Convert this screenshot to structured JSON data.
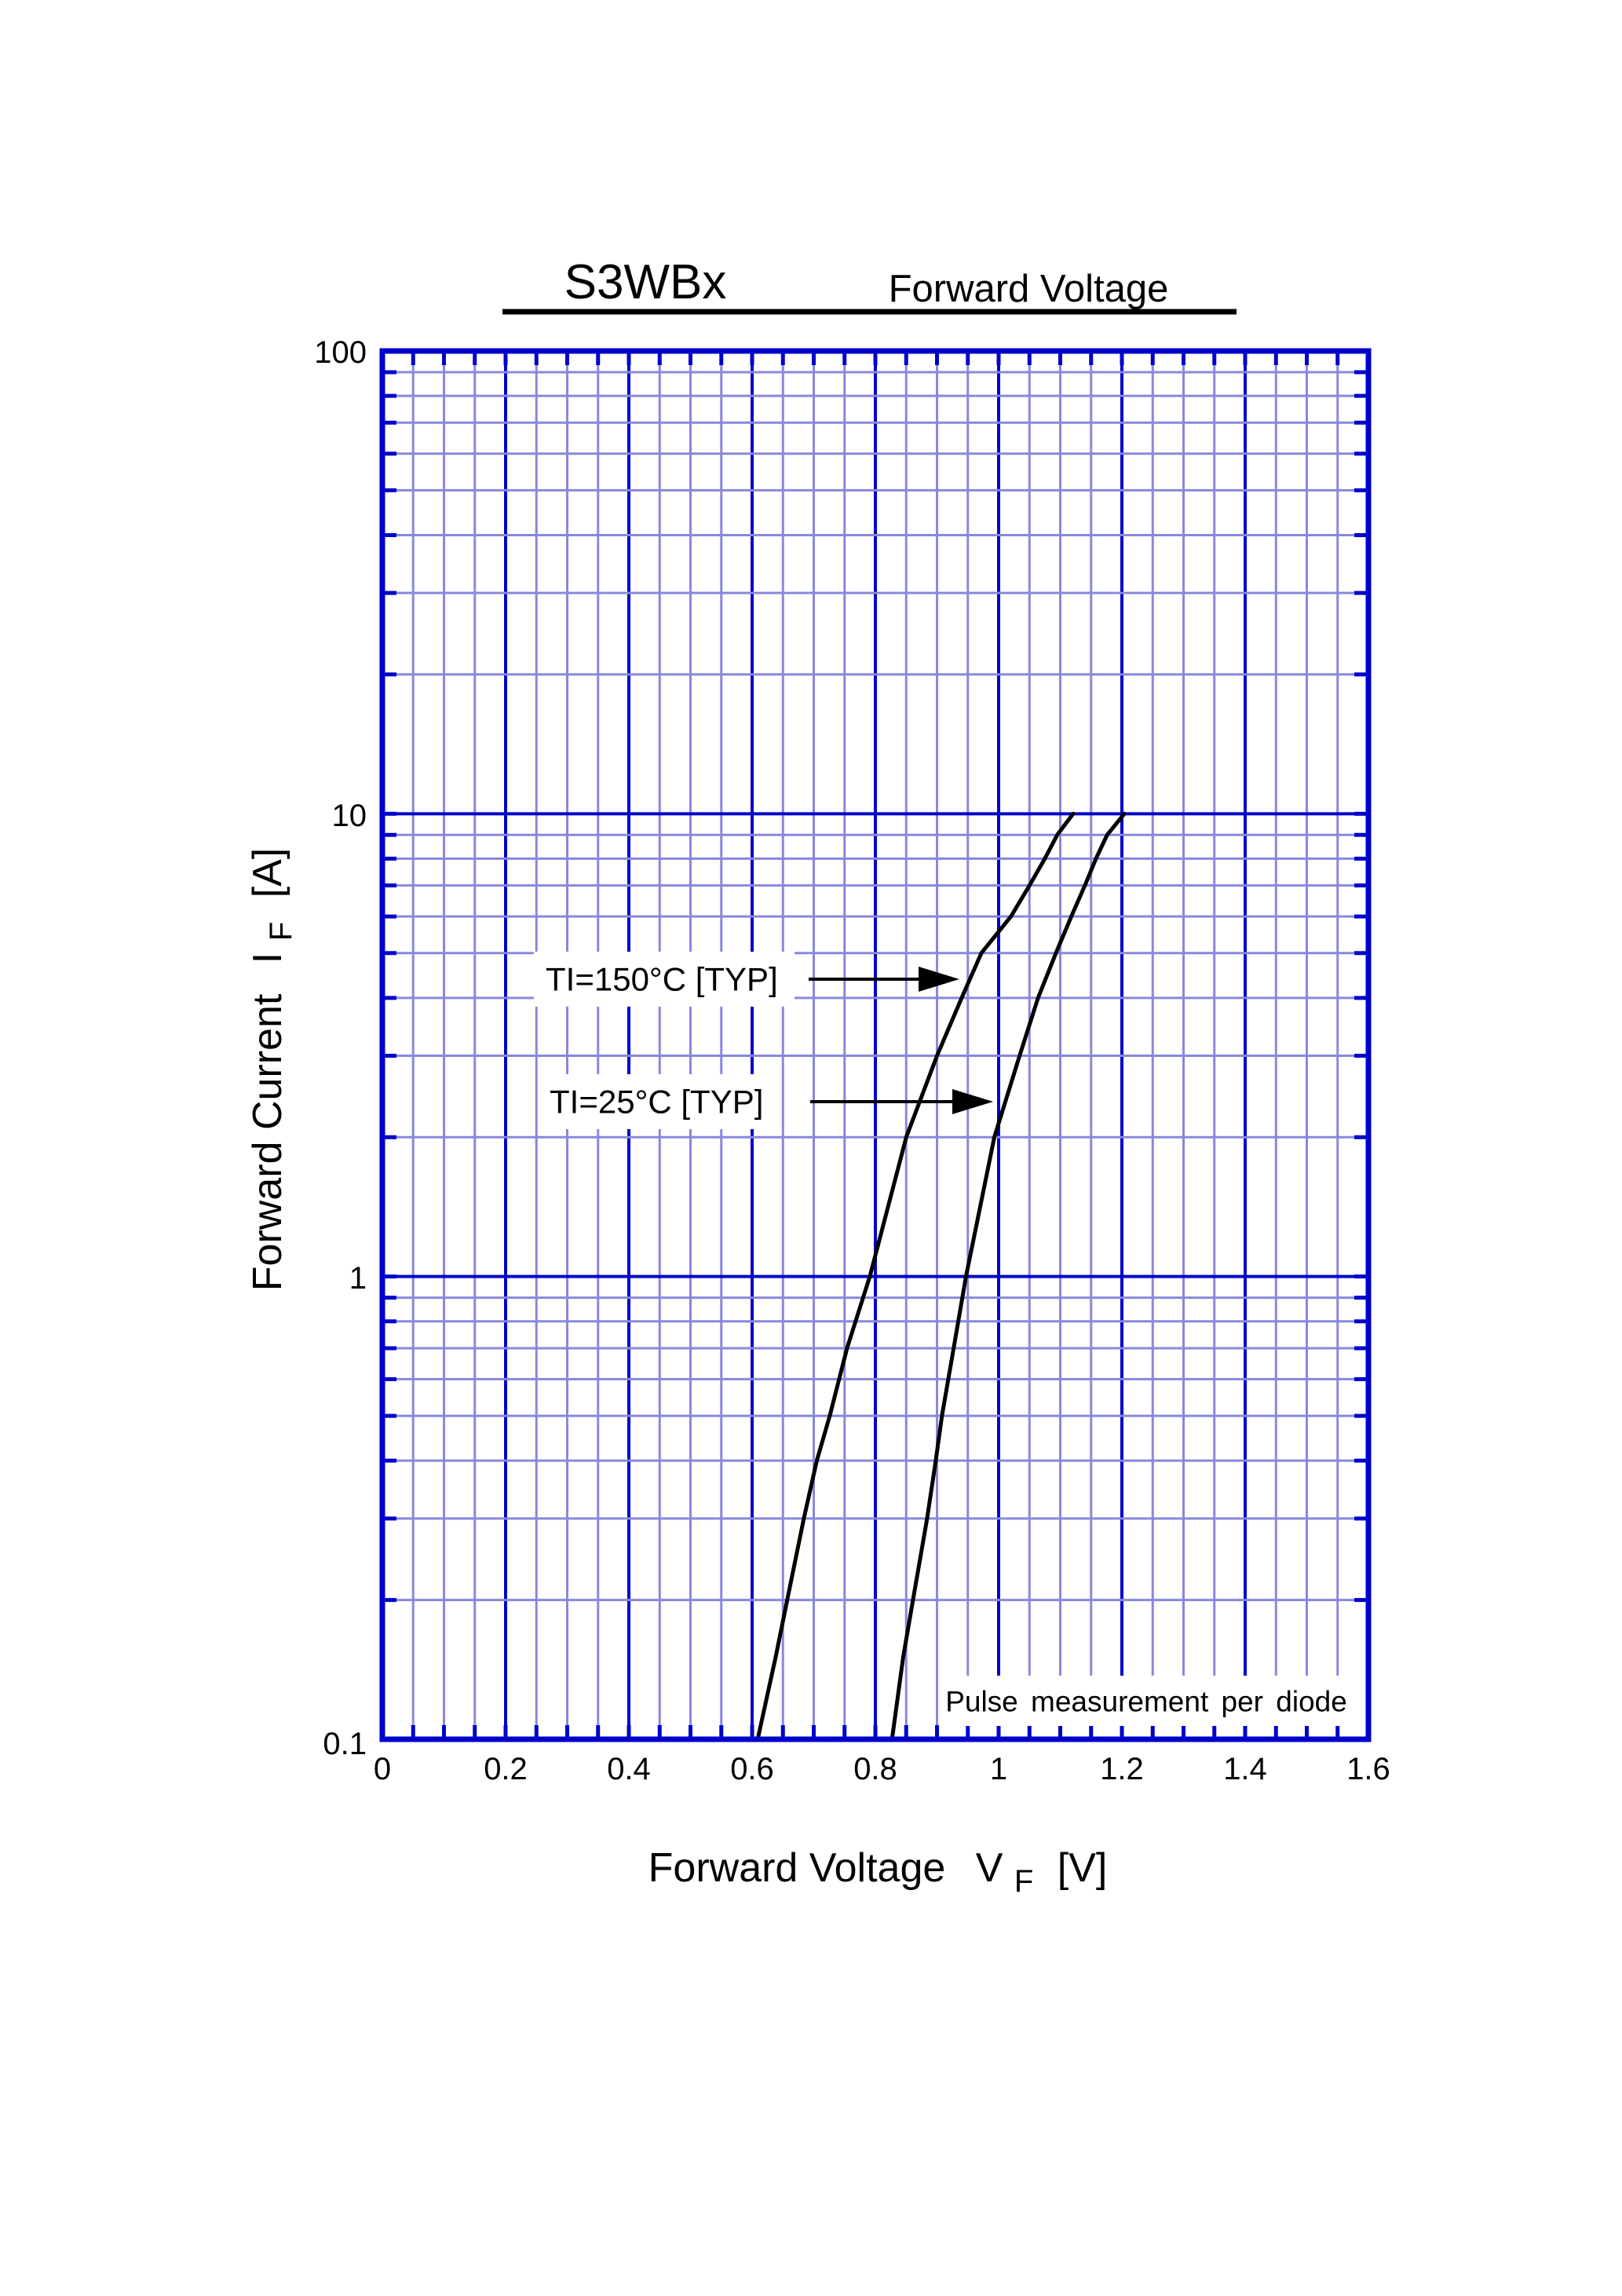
{
  "header": {
    "part_number": "S3WBx",
    "title": "Forward Voltage"
  },
  "chart_data": {
    "type": "line",
    "title": "S3WBx Forward Voltage",
    "xlabel": "Forward Voltage VF [V]",
    "ylabel": "Forward Current IF [A]",
    "grid": "on",
    "legend_position": "inline-labels-with-arrows",
    "x_axis": {
      "label_main": "Forward Voltage",
      "label_symbol": "V",
      "label_subscript": "F",
      "label_unit": "[V]",
      "scale": "linear",
      "min": 0,
      "max": 1.6,
      "major_step": 0.2,
      "minor_step": 0.05,
      "tick_labels": [
        "0",
        "0.2",
        "0.4",
        "0.6",
        "0.8",
        "1",
        "1.2",
        "1.4",
        "1.6"
      ]
    },
    "y_axis": {
      "label_main": "Forward Current",
      "label_symbol": "I",
      "label_subscript": "F",
      "label_unit": "[A]",
      "scale": "log",
      "min": 0.1,
      "max": 100,
      "tick_labels_top_to_bottom": [
        "100",
        "10",
        "1",
        "0.1"
      ]
    },
    "series": [
      {
        "name": "TI=150°C [TYP]",
        "temperature_c": 150,
        "points_v_i": [
          [
            0.609,
            0.1
          ],
          [
            0.638,
            0.15
          ],
          [
            0.657,
            0.2
          ],
          [
            0.684,
            0.3
          ],
          [
            0.705,
            0.4
          ],
          [
            0.726,
            0.5
          ],
          [
            0.754,
            0.7
          ],
          [
            0.791,
            1
          ],
          [
            0.85,
            2
          ],
          [
            0.9,
            3
          ],
          [
            0.94,
            4
          ],
          [
            0.972,
            5
          ],
          [
            1.02,
            6
          ],
          [
            1.05,
            7
          ],
          [
            1.075,
            8
          ],
          [
            1.095,
            9
          ],
          [
            1.121,
            10
          ]
        ]
      },
      {
        "name": "TI=25°C [TYP]",
        "temperature_c": 25,
        "points_v_i": [
          [
            0.827,
            0.1
          ],
          [
            0.845,
            0.15
          ],
          [
            0.861,
            0.2
          ],
          [
            0.884,
            0.3
          ],
          [
            0.898,
            0.4
          ],
          [
            0.908,
            0.5
          ],
          [
            0.927,
            0.7
          ],
          [
            0.947,
            1
          ],
          [
            0.993,
            2
          ],
          [
            1.034,
            3
          ],
          [
            1.064,
            4
          ],
          [
            1.093,
            5
          ],
          [
            1.118,
            6
          ],
          [
            1.14,
            7
          ],
          [
            1.158,
            8
          ],
          [
            1.176,
            9
          ],
          [
            1.204,
            10
          ]
        ]
      }
    ],
    "annotation": "Pulse measurement per diode",
    "colors": {
      "grid_minor": "#8888dd",
      "grid_major": "#0000cc",
      "frame": "#0000cc",
      "curve": "#000000",
      "text": "#000000"
    }
  }
}
